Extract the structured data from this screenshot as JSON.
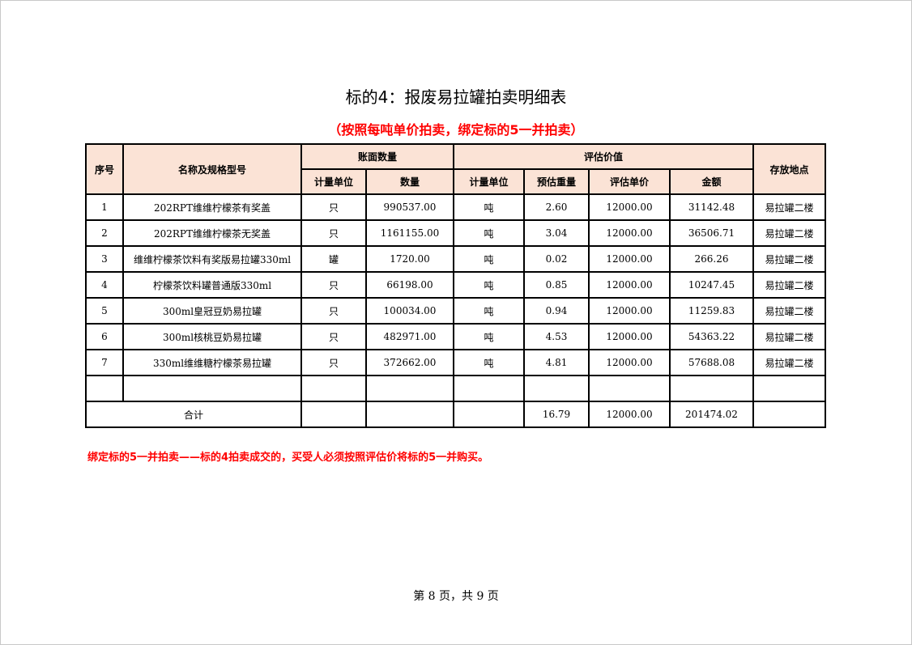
{
  "title": "标的4：报废易拉罐拍卖明细表",
  "subtitle": "（按照每吨单价拍卖，绑定标的5一并拍卖）",
  "headers": {
    "seq": "序号",
    "name": "名称及规格型号",
    "book_qty": "账面数量",
    "book_unit": "计量单位",
    "book_count": "数量",
    "valuation": "评估价值",
    "val_unit": "计量单位",
    "est_weight": "预估重量",
    "unit_price": "评估单价",
    "amount": "金额",
    "location": "存放地点"
  },
  "rows": [
    {
      "seq": "1",
      "name": "202RPT维维柠檬茶有奖盖",
      "unit": "只",
      "qty": "990537.00",
      "vunit": "吨",
      "weight": "2.60",
      "price": "12000.00",
      "amount": "31142.48",
      "loc": "易拉罐二楼"
    },
    {
      "seq": "2",
      "name": "202RPT维维柠檬茶无奖盖",
      "unit": "只",
      "qty": "1161155.00",
      "vunit": "吨",
      "weight": "3.04",
      "price": "12000.00",
      "amount": "36506.71",
      "loc": "易拉罐二楼"
    },
    {
      "seq": "3",
      "name": "维维柠檬茶饮料有奖版易拉罐330ml",
      "unit": "罐",
      "qty": "1720.00",
      "vunit": "吨",
      "weight": "0.02",
      "price": "12000.00",
      "amount": "266.26",
      "loc": "易拉罐二楼"
    },
    {
      "seq": "4",
      "name": "柠檬茶饮料罐普通版330ml",
      "unit": "只",
      "qty": "66198.00",
      "vunit": "吨",
      "weight": "0.85",
      "price": "12000.00",
      "amount": "10247.45",
      "loc": "易拉罐二楼"
    },
    {
      "seq": "5",
      "name": "300ml皇冠豆奶易拉罐",
      "unit": "只",
      "qty": "100034.00",
      "vunit": "吨",
      "weight": "0.94",
      "price": "12000.00",
      "amount": "11259.83",
      "loc": "易拉罐二楼"
    },
    {
      "seq": "6",
      "name": "300ml核桃豆奶易拉罐",
      "unit": "只",
      "qty": "482971.00",
      "vunit": "吨",
      "weight": "4.53",
      "price": "12000.00",
      "amount": "54363.22",
      "loc": "易拉罐二楼"
    },
    {
      "seq": "7",
      "name": "330ml维维糖柠檬茶易拉罐",
      "unit": "只",
      "qty": "372662.00",
      "vunit": "吨",
      "weight": "4.81",
      "price": "12000.00",
      "amount": "57688.08",
      "loc": "易拉罐二楼"
    }
  ],
  "total": {
    "label": "合计",
    "weight": "16.79",
    "price": "12000.00",
    "amount": "201474.02"
  },
  "note": "绑定标的5一并拍卖——标的4拍卖成交的，买受人必须按照评估价将标的5一并购买。",
  "footer": "第 8 页，共 9 页"
}
